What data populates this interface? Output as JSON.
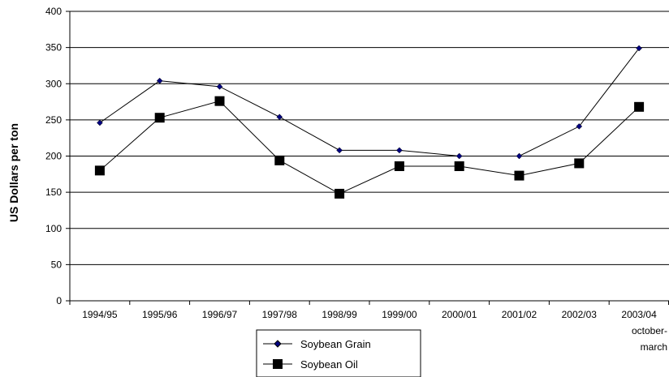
{
  "chart_data": {
    "type": "line",
    "title": "",
    "xlabel": "",
    "ylabel": "US Dollars per ton",
    "ylim": [
      0,
      400
    ],
    "yticks": [
      0,
      50,
      100,
      150,
      200,
      250,
      300,
      350,
      400
    ],
    "grid": "horizontal",
    "legend_position": "bottom-center",
    "categories": [
      [
        "1994/95"
      ],
      [
        "1995/96"
      ],
      [
        "1996/97"
      ],
      [
        "1997/98"
      ],
      [
        "1998/99"
      ],
      [
        "1999/00"
      ],
      [
        "2000/01"
      ],
      [
        "2001/02"
      ],
      [
        "2002/03"
      ],
      [
        "2003/04",
        "october-",
        "march"
      ]
    ],
    "series": [
      {
        "name": "Soybean Grain",
        "marker": "diamond",
        "color": "#000080",
        "values": [
          246,
          304,
          296,
          254,
          208,
          208,
          200,
          200,
          241,
          349
        ]
      },
      {
        "name": "Soybean Oil",
        "marker": "square",
        "color": "#000000",
        "values": [
          180,
          253,
          276,
          194,
          148,
          186,
          186,
          173,
          190,
          268
        ]
      }
    ]
  }
}
